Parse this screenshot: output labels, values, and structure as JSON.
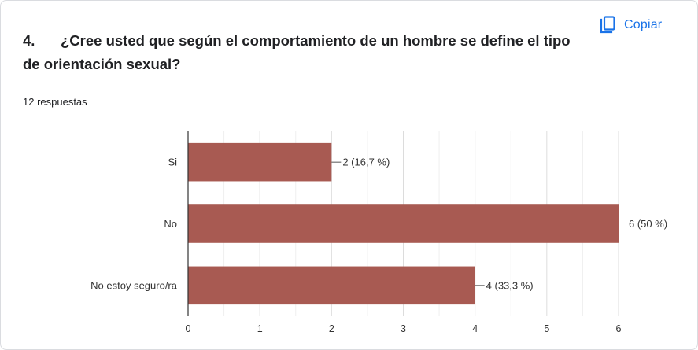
{
  "header": {
    "copy_label": "Copiar",
    "question_number": "4.",
    "question_text": "¿Cree usted que según el comportamiento de un hombre se define el tipo de orientación sexual?",
    "responses": "12 respuestas"
  },
  "colors": {
    "bar": "#a85a52",
    "accent": "#1a73e8",
    "grid": "#e6e6e6",
    "axis": "#333333",
    "text": "#202124"
  },
  "icons": {
    "copy": "copy-icon"
  },
  "chart_data": {
    "type": "bar",
    "orientation": "horizontal",
    "categories": [
      "Si",
      "No",
      "No estoy seguro/ra"
    ],
    "values": [
      2,
      6,
      4
    ],
    "data_labels": [
      "2 (16,7 %)",
      "6 (50 %)",
      "4 (33,3 %)"
    ],
    "xlim": [
      0,
      6
    ],
    "xticks": [
      "0",
      "1",
      "2",
      "3",
      "4",
      "5",
      "6"
    ],
    "grid": true,
    "legend": "none"
  }
}
